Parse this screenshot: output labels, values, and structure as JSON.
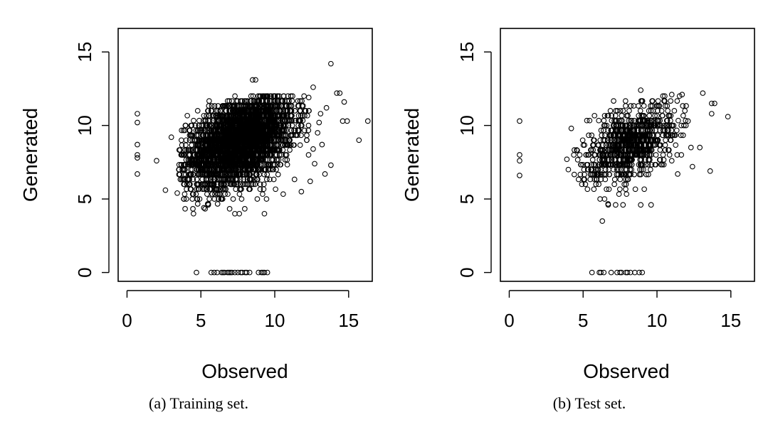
{
  "chart_data": [
    {
      "type": "scatter",
      "panel": "a",
      "caption": "(a) Training set.",
      "xlabel": "Observed",
      "ylabel": "Generated",
      "xlim": [
        -0.6,
        16.6
      ],
      "ylim": [
        -0.6,
        16.6
      ],
      "xticks": [
        0,
        5,
        10,
        15
      ],
      "yticks": [
        0,
        5,
        10,
        15
      ],
      "grid": false,
      "marker": "open-circle",
      "cluster": {
        "n": 3600,
        "x_mean": 7.6,
        "x_sd": 1.8,
        "y_mean": 8.9,
        "y_sd": 1.5,
        "corr": 0.45,
        "x_range": [
          3.5,
          12.5
        ],
        "y_range": [
          4.3,
          12.1
        ]
      },
      "points": [
        [
          0.7,
          10.8
        ],
        [
          0.7,
          10.2
        ],
        [
          0.7,
          8.7
        ],
        [
          0.7,
          8.0
        ],
        [
          0.7,
          7.8
        ],
        [
          0.7,
          6.7
        ],
        [
          2.0,
          7.6
        ],
        [
          2.6,
          5.6
        ],
        [
          3.0,
          9.2
        ],
        [
          3.4,
          5.4
        ],
        [
          4.5,
          4.0
        ],
        [
          5.2,
          4.4
        ],
        [
          5.5,
          4.6
        ],
        [
          7.3,
          4.0
        ],
        [
          7.6,
          4.0
        ],
        [
          9.3,
          4.0
        ],
        [
          8.5,
          13.1
        ],
        [
          8.7,
          13.1
        ],
        [
          13.8,
          14.2
        ],
        [
          12.6,
          12.6
        ],
        [
          14.2,
          12.2
        ],
        [
          14.4,
          12.2
        ],
        [
          14.7,
          11.6
        ],
        [
          14.6,
          10.3
        ],
        [
          14.9,
          10.3
        ],
        [
          15.7,
          9.0
        ],
        [
          16.3,
          10.3
        ],
        [
          13.8,
          7.3
        ],
        [
          13.4,
          6.7
        ],
        [
          12.7,
          7.4
        ],
        [
          13.1,
          10.8
        ],
        [
          13.5,
          11.2
        ],
        [
          12.9,
          9.5
        ],
        [
          13.2,
          8.7
        ],
        [
          12.4,
          6.2
        ],
        [
          11.8,
          5.5
        ],
        [
          13.0,
          10.2
        ],
        [
          12.3,
          11.9
        ],
        [
          12.6,
          8.4
        ],
        [
          4.7,
          0
        ],
        [
          5.7,
          0
        ],
        [
          5.9,
          0
        ],
        [
          6.1,
          0
        ],
        [
          6.4,
          0
        ],
        [
          6.5,
          0
        ],
        [
          6.6,
          0
        ],
        [
          6.8,
          0
        ],
        [
          6.9,
          0
        ],
        [
          7.0,
          0
        ],
        [
          7.1,
          0
        ],
        [
          7.3,
          0
        ],
        [
          7.5,
          0
        ],
        [
          7.7,
          0
        ],
        [
          7.8,
          0
        ],
        [
          8.0,
          0
        ],
        [
          8.1,
          0
        ],
        [
          8.3,
          0
        ],
        [
          8.9,
          0
        ],
        [
          9.1,
          0
        ],
        [
          9.2,
          0
        ],
        [
          9.3,
          0
        ],
        [
          9.5,
          0
        ]
      ]
    },
    {
      "type": "scatter",
      "panel": "b",
      "caption": "(b) Test set.",
      "xlabel": "Observed",
      "ylabel": "Generated",
      "xlim": [
        -0.6,
        16.6
      ],
      "ylim": [
        -0.6,
        16.6
      ],
      "xticks": [
        0,
        5,
        10,
        15
      ],
      "yticks": [
        0,
        5,
        10,
        15
      ],
      "grid": false,
      "marker": "open-circle",
      "cluster": {
        "n": 900,
        "x_mean": 8.2,
        "x_sd": 1.6,
        "y_mean": 8.8,
        "y_sd": 1.4,
        "corr": 0.5,
        "x_range": [
          4.2,
          12.0
        ],
        "y_range": [
          4.6,
          12.0
        ]
      },
      "points": [
        [
          0.7,
          10.3
        ],
        [
          0.7,
          8.0
        ],
        [
          0.7,
          7.6
        ],
        [
          0.7,
          6.6
        ],
        [
          3.9,
          7.7
        ],
        [
          4.0,
          7.0
        ],
        [
          4.2,
          9.8
        ],
        [
          4.6,
          8.3
        ],
        [
          6.3,
          3.5
        ],
        [
          6.7,
          4.6
        ],
        [
          7.2,
          4.6
        ],
        [
          7.7,
          4.6
        ],
        [
          8.9,
          4.6
        ],
        [
          9.6,
          4.6
        ],
        [
          8.9,
          12.4
        ],
        [
          10.4,
          12.0
        ],
        [
          11.0,
          12.1
        ],
        [
          11.7,
          12.1
        ],
        [
          13.1,
          12.2
        ],
        [
          13.7,
          11.5
        ],
        [
          13.9,
          11.5
        ],
        [
          13.7,
          10.8
        ],
        [
          14.8,
          10.6
        ],
        [
          12.9,
          8.5
        ],
        [
          12.3,
          8.5
        ],
        [
          12.4,
          7.2
        ],
        [
          13.6,
          6.9
        ],
        [
          11.4,
          6.7
        ],
        [
          11.0,
          7.6
        ],
        [
          12.1,
          10.3
        ],
        [
          5.6,
          0
        ],
        [
          6.1,
          0
        ],
        [
          6.2,
          0
        ],
        [
          6.4,
          0
        ],
        [
          6.9,
          0
        ],
        [
          7.3,
          0
        ],
        [
          7.5,
          0
        ],
        [
          7.6,
          0
        ],
        [
          7.9,
          0
        ],
        [
          8.0,
          0
        ],
        [
          8.2,
          0
        ],
        [
          8.5,
          0
        ],
        [
          8.8,
          0
        ],
        [
          9.0,
          0
        ]
      ]
    }
  ]
}
